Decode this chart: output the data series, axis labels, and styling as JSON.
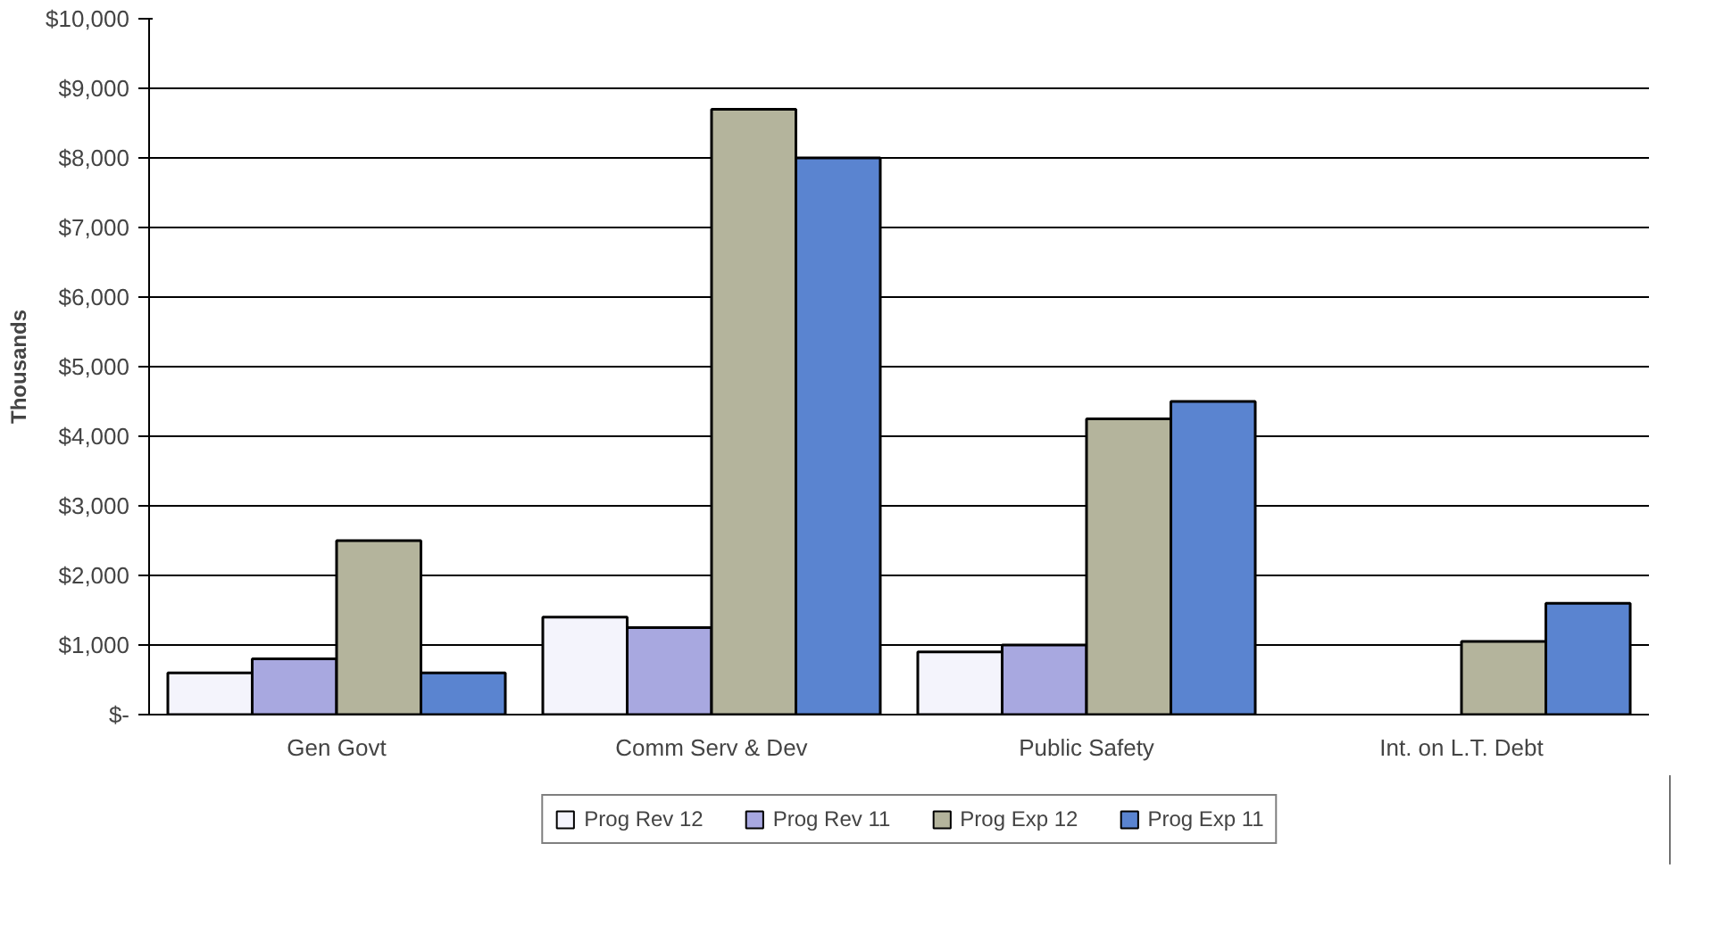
{
  "chart_data": {
    "type": "bar",
    "ylabel": "Thousands",
    "categories": [
      "Gen Govt",
      "Comm Serv & Dev",
      "Public Safety",
      "Int. on L.T. Debt"
    ],
    "series": [
      {
        "name": "Prog Rev 12",
        "color": "#f4f4fc",
        "values": [
          600,
          1400,
          900,
          null
        ]
      },
      {
        "name": "Prog Rev 11",
        "color": "#a8a8e0",
        "values": [
          800,
          1250,
          1000,
          null
        ]
      },
      {
        "name": "Prog Exp 12",
        "color": "#b4b49c",
        "values": [
          2500,
          8700,
          4250,
          1050
        ]
      },
      {
        "name": "Prog Exp 11",
        "color": "#5a84d0",
        "values": [
          600,
          8000,
          4500,
          1600
        ]
      }
    ],
    "ylim": [
      0,
      10000
    ],
    "yticks": [
      {
        "value": 0,
        "label": "$-"
      },
      {
        "value": 1000,
        "label": "$1,000"
      },
      {
        "value": 2000,
        "label": "$2,000"
      },
      {
        "value": 3000,
        "label": "$3,000"
      },
      {
        "value": 4000,
        "label": "$4,000"
      },
      {
        "value": 5000,
        "label": "$5,000"
      },
      {
        "value": 6000,
        "label": "$6,000"
      },
      {
        "value": 7000,
        "label": "$7,000"
      },
      {
        "value": 8000,
        "label": "$8,000"
      },
      {
        "value": 9000,
        "label": "$9,000"
      },
      {
        "value": 10000,
        "label": "$10,000"
      }
    ],
    "grid": "y",
    "legend": "bottom"
  }
}
